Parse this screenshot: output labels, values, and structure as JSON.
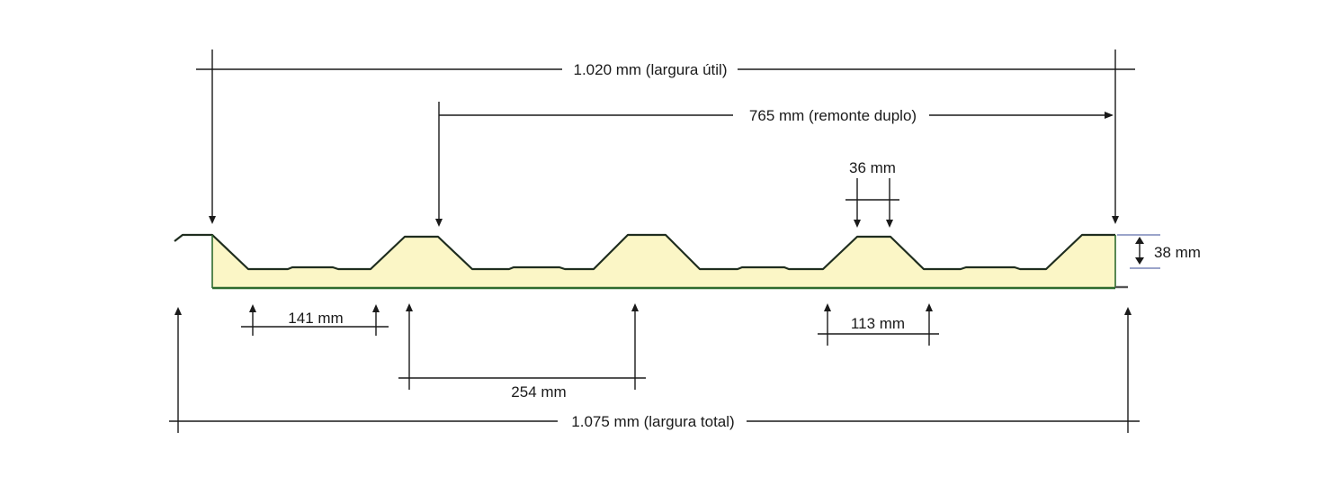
{
  "dimensions": {
    "useful_width": "1.020 mm (largura útil)",
    "double_overlap": "765 mm (remonte duplo)",
    "crest_width": "36 mm",
    "thickness": "38 mm",
    "valley_width": "141 mm",
    "rib_pitch": "254 mm",
    "rib_base": "113 mm",
    "total_width": "1.075 mm (largura total)"
  },
  "colors": {
    "foam_core": "#fbf6c6",
    "steel_top": "#1f2d1f",
    "steel_bottom": "#2e6b2e",
    "dimension_lines": "#1a1a1a"
  }
}
